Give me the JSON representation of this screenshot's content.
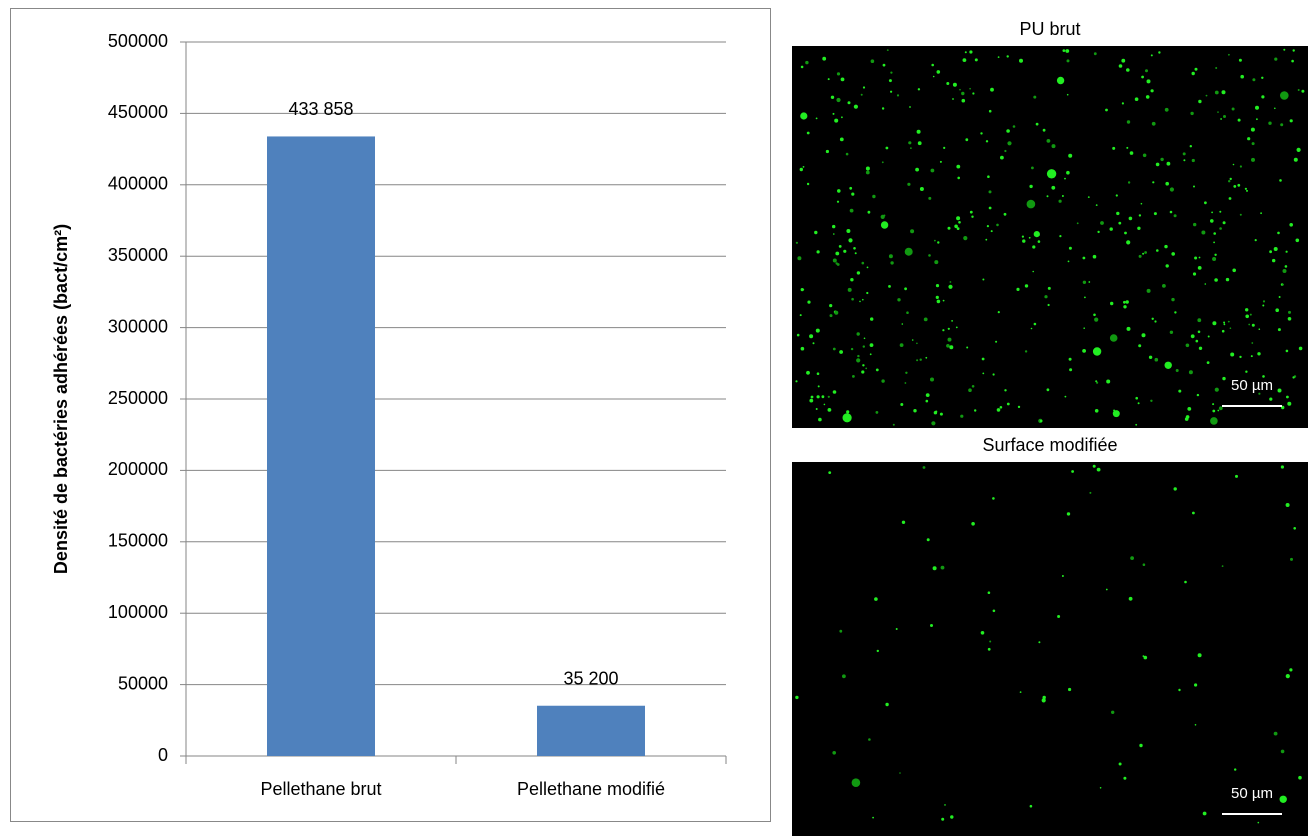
{
  "chart_data": {
    "type": "bar",
    "y_label": "Densité de bactéries adhérées (bact/cm²)",
    "categories": [
      "Pellethane brut",
      "Pellethane modifié"
    ],
    "values": [
      433858,
      35200
    ],
    "value_labels": [
      "433 858",
      "35 200"
    ],
    "color": "#4f81bd",
    "ylim": [
      0,
      500000
    ],
    "yticks": [
      0,
      50000,
      100000,
      150000,
      200000,
      250000,
      300000,
      350000,
      400000,
      450000,
      500000
    ],
    "grid": true
  },
  "images": [
    {
      "title": "PU brut",
      "scale_label": "50 µm"
    },
    {
      "title": "Surface modifiée",
      "scale_label": "50 µm"
    }
  ]
}
